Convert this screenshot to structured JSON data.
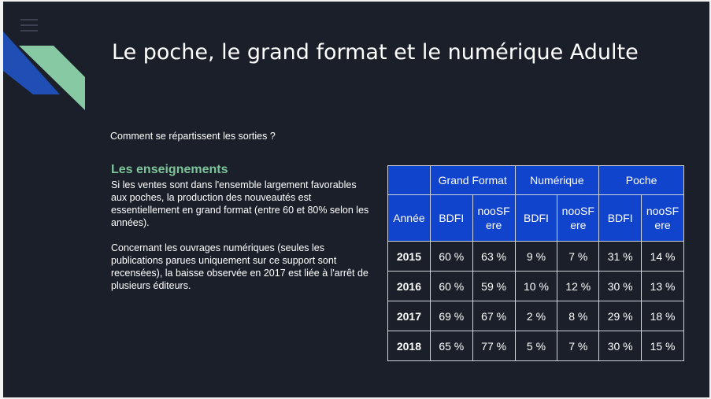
{
  "slide": {
    "title": "Le poche, le grand format et le numérique Adulte",
    "question": "Comment se répartissent les sorties ?",
    "lessons": {
      "heading": "Les enseignements",
      "paragraph1": "Si les ventes sont dans l'ensemble largement favorables aux poches, la production des nouveautés est essentiellement en grand format (entre 60 et 80% selon les années).",
      "paragraph2": "Concernant les ouvrages numériques (seules les publications parues uniquement sur ce support sont recensées), la baisse observée en 2017 est liée à l'arrêt de plusieurs éditeurs."
    }
  },
  "table": {
    "groups": [
      "Grand Format",
      "Numérique",
      "Poche"
    ],
    "year_header": "Année",
    "subheaders": [
      "BDFI",
      "nooSFere",
      "BDFI",
      "nooSFere",
      "BDFI",
      "nooSFere"
    ],
    "subheader_display": [
      "BDFI",
      "nooSF\nere",
      "BDFI",
      "nooSF\nere",
      "BDFI",
      "nooSF\nere"
    ],
    "rows": [
      {
        "year": "2015",
        "values": [
          "60 %",
          "63 %",
          "9 %",
          "7 %",
          "31 %",
          "14 %"
        ]
      },
      {
        "year": "2016",
        "values": [
          "60 %",
          "59 %",
          "10 %",
          "12 %",
          "30 %",
          "13 %"
        ]
      },
      {
        "year": "2017",
        "values": [
          "69 %",
          "67 %",
          "2 %",
          "8 %",
          "29 %",
          "18 %"
        ]
      },
      {
        "year": "2018",
        "values": [
          "65 %",
          "77 %",
          "5 %",
          "7 %",
          "30 %",
          "15 %"
        ]
      }
    ]
  },
  "colors": {
    "background": "#1b1f2a",
    "accent_green": "#7cc49a",
    "accent_blue": "#1144cc",
    "deco_blue": "#1f4fb5",
    "deco_green": "#86c9a3"
  },
  "icons": {
    "menu": "hamburger-menu-icon"
  }
}
